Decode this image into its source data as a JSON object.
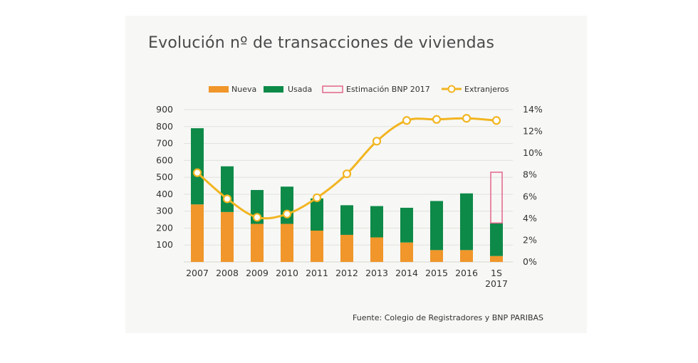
{
  "chart_data": {
    "type": "bar",
    "title": "Evolución nº de transacciones de viviendas",
    "source": "Fuente: Colegio de Registradores y BNP PARIBAS",
    "categories": [
      "2007",
      "2008",
      "2009",
      "2010",
      "2011",
      "2012",
      "2013",
      "2014",
      "2015",
      "2016",
      "1S 2017"
    ],
    "series": [
      {
        "name": "Nueva",
        "color": "#f0962a",
        "values": [
          340,
          295,
          225,
          225,
          185,
          160,
          145,
          115,
          70,
          70,
          35
        ]
      },
      {
        "name": "Usada",
        "color": "#0d8a48",
        "values": [
          450,
          270,
          200,
          220,
          190,
          175,
          185,
          205,
          290,
          335,
          195
        ]
      },
      {
        "name": "Estimación BNP 2017",
        "color": "#e2668a",
        "style": "outline",
        "values": [
          null,
          null,
          null,
          null,
          null,
          null,
          null,
          null,
          null,
          null,
          300
        ]
      },
      {
        "name": "Extranjeros",
        "color": "#f2b521",
        "axis": "right",
        "type": "line",
        "values": [
          8.2,
          5.8,
          4.1,
          4.4,
          5.9,
          8.1,
          11.1,
          13.0,
          13.1,
          13.2,
          13.0
        ]
      }
    ],
    "y_left": {
      "ticks": [
        100,
        200,
        300,
        400,
        500,
        600,
        700,
        800,
        900
      ],
      "ylim": [
        0,
        900
      ]
    },
    "y_right": {
      "ticks": [
        "0%",
        "2%",
        "4%",
        "6%",
        "8%",
        "10%",
        "12%",
        "14%"
      ],
      "ylim": [
        0,
        14
      ]
    },
    "grid": true,
    "legend_position": "top"
  }
}
